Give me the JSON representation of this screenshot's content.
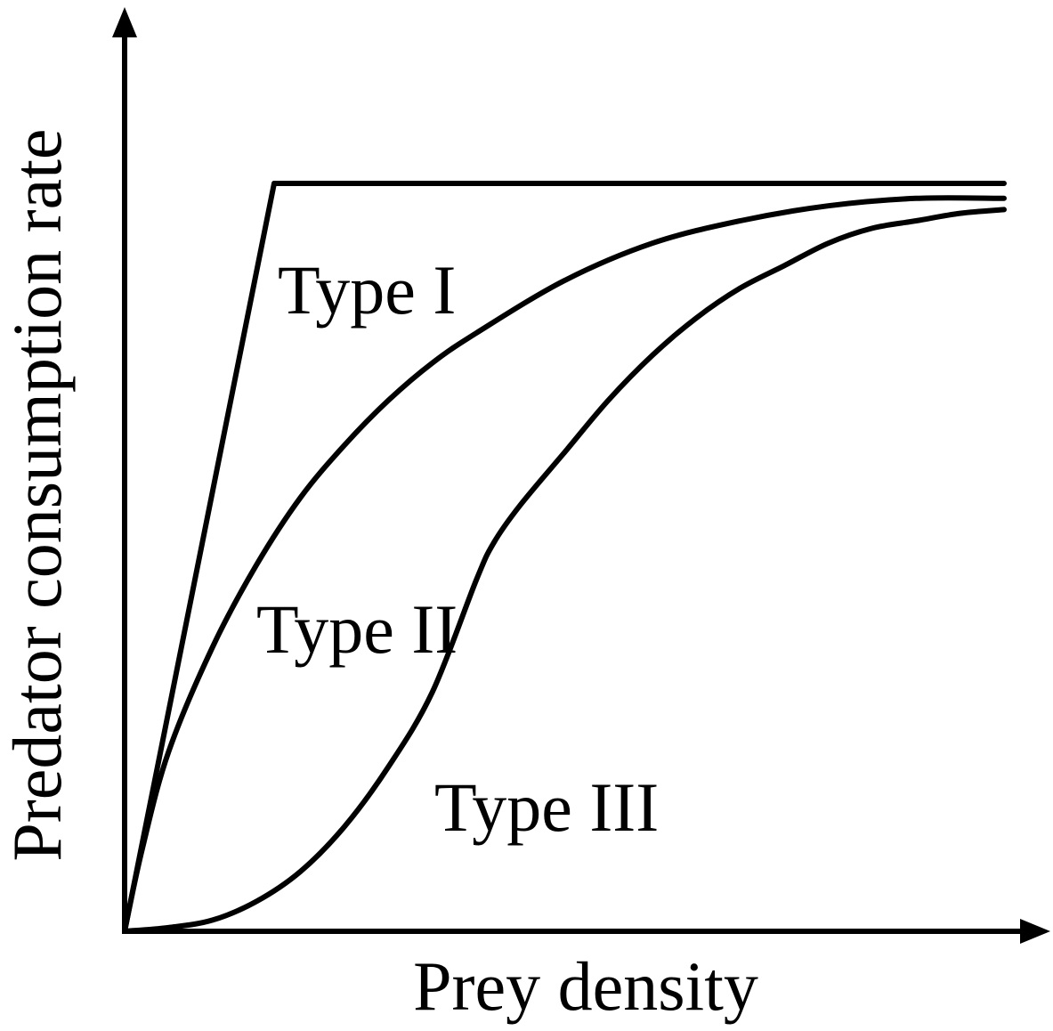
{
  "chart_data": {
    "type": "line",
    "title": "",
    "xlabel": "Prey density",
    "ylabel": "Predator consumption rate",
    "xlim": [
      0,
      100
    ],
    "ylim": [
      0,
      100
    ],
    "grid": false,
    "x_ticks": false,
    "y_ticks": false,
    "series": [
      {
        "name": "Type I",
        "x": [
          0,
          17,
          100
        ],
        "y": [
          0,
          100,
          100
        ]
      },
      {
        "name": "Type II",
        "x": [
          0,
          2,
          5,
          10,
          15,
          20,
          25,
          30,
          35,
          40,
          50,
          60,
          70,
          80,
          90,
          100
        ],
        "y": [
          0,
          11,
          24,
          38,
          49,
          58,
          65,
          71,
          76,
          80,
          87,
          92,
          95,
          97,
          98,
          98
        ]
      },
      {
        "name": "Type III",
        "x": [
          0,
          5,
          10,
          15,
          20,
          25,
          30,
          35,
          40,
          42,
          45,
          50,
          55,
          60,
          65,
          70,
          75,
          80,
          85,
          90,
          95,
          100
        ],
        "y": [
          0,
          0.5,
          1.5,
          4,
          8,
          14,
          22,
          32,
          47,
          52,
          57,
          64,
          71,
          77,
          82,
          86,
          89,
          92,
          94,
          95,
          96,
          96.5
        ]
      }
    ]
  }
}
